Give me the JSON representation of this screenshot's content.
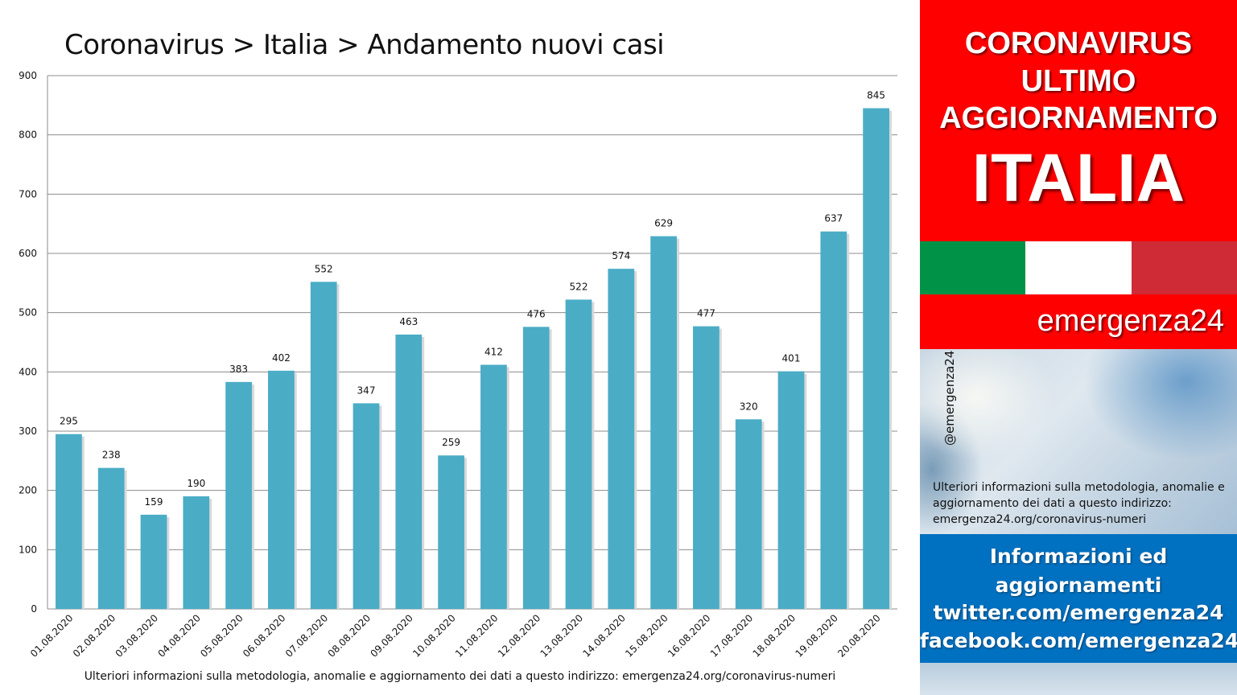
{
  "chart_data": {
    "type": "bar",
    "title": "Coronavirus > Italia > Andamento nuovi casi",
    "categories": [
      "01.08.2020",
      "02.08.2020",
      "03.08.2020",
      "04.08.2020",
      "05.08.2020",
      "06.08.2020",
      "07.08.2020",
      "08.08.2020",
      "09.08.2020",
      "10.08.2020",
      "11.08.2020",
      "12.08.2020",
      "13.08.2020",
      "14.08.2020",
      "15.08.2020",
      "16.08.2020",
      "17.08.2020",
      "18.08.2020",
      "19.08.2020",
      "20.08.2020"
    ],
    "values": [
      295,
      238,
      159,
      190,
      383,
      402,
      552,
      347,
      463,
      259,
      412,
      476,
      522,
      574,
      629,
      477,
      320,
      401,
      637,
      845
    ],
    "ylim": [
      0,
      900
    ],
    "yticks": [
      0,
      100,
      200,
      300,
      400,
      500,
      600,
      700,
      800,
      900
    ],
    "xlabel": "",
    "ylabel": "",
    "grid": true,
    "bar_color": "#4bacc6",
    "data_labels": true
  },
  "chart_footnote": "Ulteriori informazioni sulla metodologia, anomalie e aggiornamento dei dati a questo indirizzo: emergenza24.org/coronavirus-numeri",
  "sidebar": {
    "banner_line1": "CORONAVIRUS",
    "banner_line2": "ULTIMO",
    "banner_line3": "AGGIORNAMENTO",
    "banner_country": "ITALIA",
    "banner_color": "#ff0000",
    "flag_colors": [
      "#009246",
      "#ffffff",
      "#ce2b37"
    ],
    "brand": "emergenza24",
    "handle": "@emergenza24",
    "note": "Ulteriori informazioni sulla metodologia, anomalie e aggiornamento dei dati a questo indirizzo: emergenza24.org/coronavirus-numeri",
    "info_line1": "Informazioni ed",
    "info_line2": "aggiornamenti",
    "info_line3": "twitter.com/emergenza24",
    "info_line4": "facebook.com/emergenza24",
    "info_color": "#0070c0"
  }
}
